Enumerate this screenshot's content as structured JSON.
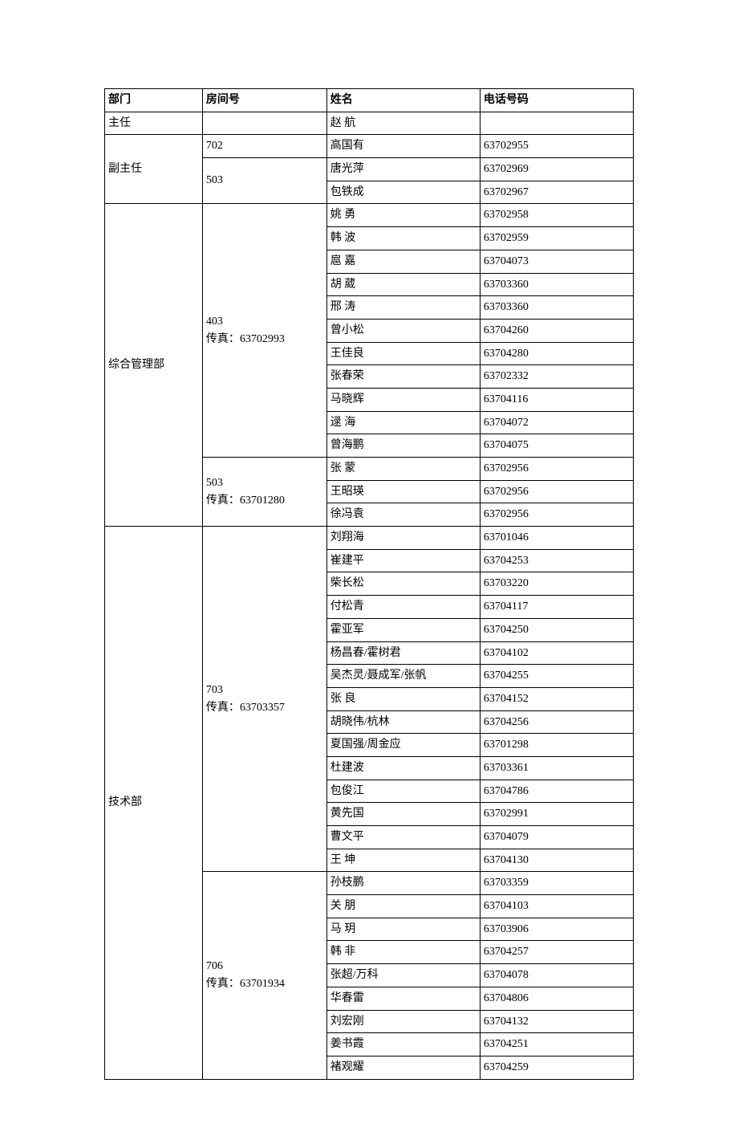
{
  "headers": {
    "dept": "部门",
    "room": "房间号",
    "name": "姓名",
    "phone": "电话号码"
  },
  "rows": [
    {
      "cells": [
        "主任",
        "",
        "赵 航",
        ""
      ],
      "spans": [
        1,
        1,
        1,
        1
      ]
    },
    {
      "cells": [
        "副主任",
        "702",
        "高国有",
        "63702955"
      ],
      "spans": [
        3,
        1,
        1,
        1
      ]
    },
    {
      "cells": [
        "503",
        "唐光萍",
        "63702969"
      ],
      "spans": [
        2,
        1,
        1
      ]
    },
    {
      "cells": [
        "包铁成",
        "63702967"
      ],
      "spans": [
        1,
        1
      ]
    },
    {
      "cells": [
        "综合管理部",
        "403\n传真：63702993",
        "姚 勇",
        "63702958"
      ],
      "spans": [
        14,
        11,
        1,
        1
      ]
    },
    {
      "cells": [
        "韩 波",
        "63702959"
      ],
      "spans": [
        1,
        1
      ]
    },
    {
      "cells": [
        "扈 嘉",
        "63704073"
      ],
      "spans": [
        1,
        1
      ]
    },
    {
      "cells": [
        "胡 葳",
        "63703360"
      ],
      "spans": [
        1,
        1
      ]
    },
    {
      "cells": [
        "邢 涛",
        "63703360"
      ],
      "spans": [
        1,
        1
      ]
    },
    {
      "cells": [
        "曾小松",
        "63704260"
      ],
      "spans": [
        1,
        1
      ]
    },
    {
      "cells": [
        "王佳良",
        "63704280"
      ],
      "spans": [
        1,
        1
      ]
    },
    {
      "cells": [
        "张春荣",
        "63702332"
      ],
      "spans": [
        1,
        1
      ]
    },
    {
      "cells": [
        "马晓辉",
        "63704116"
      ],
      "spans": [
        1,
        1
      ]
    },
    {
      "cells": [
        "逯 海",
        "63704072"
      ],
      "spans": [
        1,
        1
      ]
    },
    {
      "cells": [
        "曾海鹏",
        "63704075"
      ],
      "spans": [
        1,
        1
      ]
    },
    {
      "cells": [
        "503\n传真：63701280",
        "张 蒙",
        "63702956"
      ],
      "spans": [
        3,
        1,
        1
      ]
    },
    {
      "cells": [
        "王昭瑛",
        "63702956"
      ],
      "spans": [
        1,
        1
      ]
    },
    {
      "cells": [
        "徐冯袁",
        "63702956"
      ],
      "spans": [
        1,
        1
      ]
    },
    {
      "cells": [
        "技术部",
        "703\n传真：63703357",
        "刘翔海",
        "63701046"
      ],
      "spans": [
        24,
        15,
        1,
        1
      ]
    },
    {
      "cells": [
        "崔建平",
        "63704253"
      ],
      "spans": [
        1,
        1
      ]
    },
    {
      "cells": [
        "柴长松",
        "63703220"
      ],
      "spans": [
        1,
        1
      ]
    },
    {
      "cells": [
        "付松青",
        "63704117"
      ],
      "spans": [
        1,
        1
      ]
    },
    {
      "cells": [
        "霍亚军",
        "63704250"
      ],
      "spans": [
        1,
        1
      ]
    },
    {
      "cells": [
        "杨昌春/霍树君",
        "63704102"
      ],
      "spans": [
        1,
        1
      ]
    },
    {
      "cells": [
        "吴杰灵/聂成军/张帆",
        "63704255"
      ],
      "spans": [
        1,
        1
      ]
    },
    {
      "cells": [
        "张 良",
        "63704152"
      ],
      "spans": [
        1,
        1
      ]
    },
    {
      "cells": [
        "胡晓伟/杭林",
        "63704256"
      ],
      "spans": [
        1,
        1
      ]
    },
    {
      "cells": [
        "夏国强/周金应",
        "63701298"
      ],
      "spans": [
        1,
        1
      ]
    },
    {
      "cells": [
        "杜建波",
        "63703361"
      ],
      "spans": [
        1,
        1
      ]
    },
    {
      "cells": [
        "包俊江",
        "63704786"
      ],
      "spans": [
        1,
        1
      ]
    },
    {
      "cells": [
        "黄先国",
        "63702991"
      ],
      "spans": [
        1,
        1
      ]
    },
    {
      "cells": [
        "曹文平",
        "63704079"
      ],
      "spans": [
        1,
        1
      ]
    },
    {
      "cells": [
        "王 坤",
        "63704130"
      ],
      "spans": [
        1,
        1
      ]
    },
    {
      "cells": [
        "706\n传真：63701934",
        "孙枝鹏",
        "63703359"
      ],
      "spans": [
        9,
        1,
        1
      ]
    },
    {
      "cells": [
        "关 朋",
        "63704103"
      ],
      "spans": [
        1,
        1
      ]
    },
    {
      "cells": [
        "马 玥",
        "63703906"
      ],
      "spans": [
        1,
        1
      ]
    },
    {
      "cells": [
        "韩 非",
        "63704257"
      ],
      "spans": [
        1,
        1
      ]
    },
    {
      "cells": [
        "张超/万科",
        "63704078"
      ],
      "spans": [
        1,
        1
      ]
    },
    {
      "cells": [
        "华春雷",
        "63704806"
      ],
      "spans": [
        1,
        1
      ]
    },
    {
      "cells": [
        "刘宏刚",
        "63704132"
      ],
      "spans": [
        1,
        1
      ]
    },
    {
      "cells": [
        "姜书霞",
        "63704251"
      ],
      "spans": [
        1,
        1
      ]
    },
    {
      "cells": [
        "褚观耀",
        "63704259"
      ],
      "spans": [
        1,
        1
      ]
    }
  ]
}
